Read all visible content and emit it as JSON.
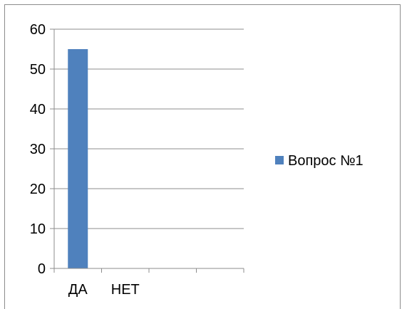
{
  "chart_data": {
    "type": "bar",
    "categories": [
      "ДА",
      "НЕТ"
    ],
    "series": [
      {
        "name": "Вопрос №1",
        "values": [
          55,
          0
        ],
        "color": "#4f81bd"
      }
    ],
    "yticks": [
      "0",
      "10",
      "20",
      "30",
      "40",
      "50",
      "60"
    ],
    "ylim": [
      0,
      60
    ],
    "grid": true,
    "legend": "right"
  }
}
